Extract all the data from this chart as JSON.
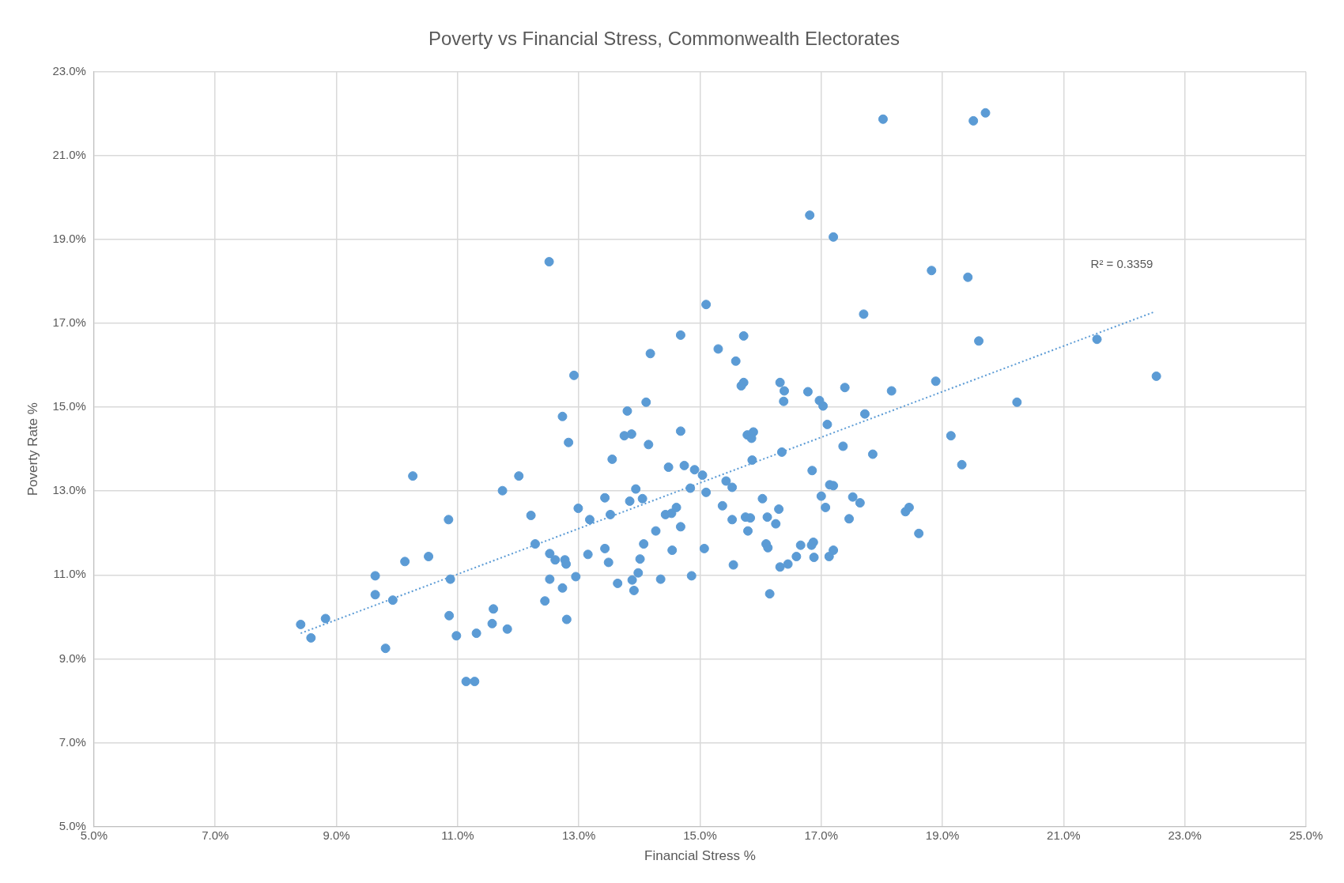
{
  "chart_data": {
    "type": "scatter",
    "title": "Poverty vs Financial Stress, Commonwealth Electorates",
    "xlabel": "Financial Stress %",
    "ylabel": "Poverty Rate %",
    "xlim": [
      5,
      25
    ],
    "ylim": [
      5,
      23
    ],
    "xticks": [
      {
        "value": 5,
        "label": "5.0%"
      },
      {
        "value": 7,
        "label": "7.0%"
      },
      {
        "value": 9,
        "label": "9.0%"
      },
      {
        "value": 11,
        "label": "11.0%"
      },
      {
        "value": 13,
        "label": "13.0%"
      },
      {
        "value": 15,
        "label": "15.0%"
      },
      {
        "value": 17,
        "label": "17.0%"
      },
      {
        "value": 19,
        "label": "19.0%"
      },
      {
        "value": 21,
        "label": "21.0%"
      },
      {
        "value": 23,
        "label": "23.0%"
      },
      {
        "value": 25,
        "label": "25.0%"
      }
    ],
    "yticks": [
      {
        "value": 5,
        "label": "5.0%"
      },
      {
        "value": 7,
        "label": "7.0%"
      },
      {
        "value": 9,
        "label": "9.0%"
      },
      {
        "value": 11,
        "label": "11.0%"
      },
      {
        "value": 13,
        "label": "13.0%"
      },
      {
        "value": 15,
        "label": "15.0%"
      },
      {
        "value": 17,
        "label": "17.0%"
      },
      {
        "value": 19,
        "label": "19.0%"
      },
      {
        "value": 21,
        "label": "21.0%"
      },
      {
        "value": 23,
        "label": "23.0%"
      }
    ],
    "grid": true,
    "legend": false,
    "marker": "circle",
    "annotations": [
      "R² = 0.3359"
    ],
    "series": [
      {
        "type": "scatter",
        "color": "#5b9bd5",
        "x": [
          8.41,
          8.58,
          8.82,
          9.81,
          9.64,
          9.64,
          9.93,
          10.13,
          10.26,
          10.52,
          10.85,
          10.88,
          10.86,
          10.98,
          11.14,
          11.28,
          11.31,
          11.57,
          11.59,
          11.82,
          11.74,
          12.01,
          12.21,
          12.28,
          12.51,
          12.52,
          12.61,
          12.52,
          12.44,
          12.73,
          12.83,
          12.92,
          12.77,
          12.79,
          12.73,
          12.8,
          12.99,
          12.95,
          13.18,
          13.15,
          13.43,
          13.43,
          13.49,
          13.52,
          13.55,
          13.64,
          13.8,
          13.75,
          13.87,
          13.84,
          13.94,
          13.88,
          13.91,
          13.98,
          14.01,
          14.05,
          14.07,
          14.11,
          14.15,
          14.18,
          14.27,
          14.35,
          14.43,
          14.48,
          14.53,
          14.54,
          14.61,
          14.68,
          14.68,
          14.68,
          14.74,
          14.84,
          14.86,
          14.91,
          15.04,
          15.1,
          15.1,
          15.07,
          15.3,
          15.37,
          15.43,
          15.53,
          15.53,
          15.55,
          15.59,
          15.68,
          15.72,
          15.72,
          15.75,
          15.78,
          15.79,
          15.83,
          15.88,
          15.85,
          15.86,
          16.03,
          16.09,
          16.11,
          16.12,
          16.15,
          16.25,
          16.3,
          16.32,
          16.35,
          16.39,
          16.38,
          16.32,
          16.45,
          16.59,
          16.66,
          16.78,
          16.81,
          16.84,
          16.85,
          16.87,
          16.88,
          16.97,
          17.0,
          17.03,
          17.07,
          17.1,
          17.13,
          17.14,
          17.2,
          17.2,
          17.2,
          17.36,
          17.39,
          17.46,
          17.52,
          17.64,
          17.7,
          17.72,
          17.85,
          18.02,
          18.16,
          18.39,
          18.45,
          18.61,
          18.82,
          18.89,
          19.14,
          19.32,
          19.42,
          19.51,
          19.6,
          19.71,
          20.23,
          21.55,
          22.53
        ],
        "values": [
          9.82,
          9.5,
          9.96,
          9.25,
          10.98,
          10.53,
          10.4,
          11.32,
          13.36,
          11.44,
          12.32,
          10.9,
          10.03,
          9.55,
          8.46,
          8.46,
          9.61,
          9.84,
          10.19,
          9.71,
          13.01,
          13.36,
          12.42,
          11.74,
          18.47,
          11.51,
          11.36,
          10.9,
          10.38,
          14.78,
          14.16,
          15.76,
          11.36,
          11.26,
          10.69,
          9.94,
          12.59,
          10.96,
          12.32,
          11.49,
          12.84,
          11.63,
          11.3,
          12.44,
          13.76,
          10.8,
          14.91,
          14.32,
          14.36,
          12.76,
          13.05,
          10.88,
          10.63,
          11.05,
          11.38,
          12.82,
          11.74,
          15.12,
          14.11,
          16.28,
          12.05,
          10.9,
          12.44,
          13.57,
          12.47,
          11.59,
          12.61,
          16.72,
          14.43,
          12.15,
          13.61,
          13.07,
          10.98,
          13.51,
          13.38,
          17.45,
          12.97,
          11.63,
          16.39,
          12.65,
          13.24,
          13.09,
          12.32,
          11.24,
          16.1,
          15.51,
          15.59,
          16.7,
          12.38,
          14.34,
          12.05,
          12.36,
          14.41,
          14.26,
          13.74,
          12.82,
          11.74,
          12.38,
          11.65,
          10.55,
          12.22,
          12.57,
          15.59,
          13.93,
          15.39,
          15.14,
          11.19,
          11.26,
          11.44,
          11.71,
          15.37,
          19.58,
          11.71,
          13.49,
          11.78,
          11.42,
          15.16,
          12.88,
          15.03,
          12.61,
          14.59,
          11.44,
          13.15,
          19.06,
          13.13,
          11.59,
          14.07,
          15.47,
          12.34,
          12.86,
          12.72,
          17.22,
          14.84,
          13.88,
          21.87,
          15.39,
          12.51,
          12.61,
          11.99,
          18.26,
          15.62,
          14.32,
          13.63,
          18.1,
          21.83,
          16.58,
          22.02,
          15.12,
          16.62,
          15.74
        ]
      },
      {
        "type": "line",
        "color": "#5b9bd5",
        "line_style": "dotted",
        "marker": "none",
        "x": [
          8.41,
          22.49
        ],
        "values": [
          9.61,
          17.27
        ]
      }
    ]
  }
}
